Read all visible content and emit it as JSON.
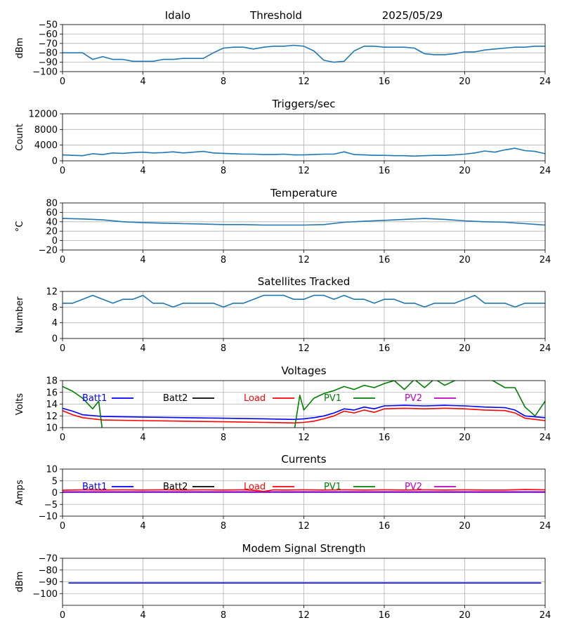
{
  "header": {
    "station": "Idalo",
    "mode": "Threshold",
    "date": "2025/05/29"
  },
  "x_axis": {
    "range": [
      0,
      24
    ],
    "ticks": [
      0,
      4,
      8,
      12,
      16,
      20,
      24
    ],
    "tick_labels": [
      "0",
      "4",
      "8",
      "12",
      "16",
      "20",
      "24"
    ]
  },
  "legend_labels": {
    "batt1": "Batt1",
    "batt2": "Batt2",
    "load": "Load",
    "pv1": "PV1",
    "pv2": "PV2"
  },
  "colors": {
    "default_series": "#1f77b4",
    "batt1": "#0000ff",
    "batt2": "#000000",
    "load": "#ff0000",
    "pv1": "#008000",
    "pv2": "#bf00bf",
    "modem": "#0000ff"
  },
  "chart_data": [
    {
      "id": "threshold",
      "type": "line",
      "title": "",
      "ylabel": "dBm",
      "ylim": [
        -100,
        -50
      ],
      "yticks": [
        -100,
        -90,
        -80,
        -70,
        -60,
        -50
      ],
      "ytick_labels": [
        "−100",
        "−90",
        "−80",
        "−70",
        "−60",
        "−50"
      ],
      "grid": true,
      "series": [
        {
          "key": "default_series",
          "x": [
            0,
            0.5,
            1,
            1.5,
            2,
            2.5,
            3,
            3.5,
            4,
            4.5,
            5,
            5.5,
            6,
            6.5,
            7,
            7.5,
            8,
            8.5,
            9,
            9.5,
            10,
            10.5,
            11,
            11.5,
            12,
            12.5,
            13,
            13.5,
            14,
            14.5,
            15,
            15.5,
            16,
            16.5,
            17,
            17.5,
            18,
            18.5,
            19,
            19.5,
            20,
            20.5,
            21,
            21.5,
            22,
            22.5,
            23,
            23.5,
            24
          ],
          "values": [
            -80,
            -80,
            -80,
            -87,
            -84,
            -87,
            -87,
            -89,
            -89,
            -89,
            -87,
            -87,
            -86,
            -86,
            -86,
            -80,
            -75,
            -74,
            -74,
            -76,
            -74,
            -73,
            -73,
            -72,
            -73,
            -78,
            -88,
            -90,
            -89,
            -78,
            -73,
            -73,
            -74,
            -74,
            -74,
            -75,
            -81,
            -82,
            -82,
            -81,
            -79,
            -79,
            -77,
            -76,
            -75,
            -74,
            -74,
            -73,
            -73
          ]
        }
      ]
    },
    {
      "id": "triggers",
      "type": "line",
      "title": "Triggers/sec",
      "ylabel": "Count",
      "ylim": [
        0,
        12000
      ],
      "yticks": [
        0,
        4000,
        8000,
        12000
      ],
      "ytick_labels": [
        "0",
        "4000",
        "8000",
        "12000"
      ],
      "grid": true,
      "series": [
        {
          "key": "default_series",
          "x": [
            0,
            0.5,
            1,
            1.5,
            2,
            2.5,
            3,
            3.5,
            4,
            4.5,
            5,
            5.5,
            6,
            6.5,
            7,
            7.5,
            8,
            8.5,
            9,
            9.5,
            10,
            10.5,
            11,
            11.5,
            12,
            12.5,
            13,
            13.5,
            14,
            14.5,
            15,
            15.5,
            16,
            16.5,
            17,
            17.5,
            18,
            18.5,
            19,
            19.5,
            20,
            20.5,
            21,
            21.5,
            22,
            22.5,
            23,
            23.5,
            24
          ],
          "values": [
            1500,
            1400,
            1300,
            1800,
            1600,
            2000,
            1900,
            2100,
            2200,
            2000,
            2100,
            2300,
            2000,
            2200,
            2400,
            2000,
            1900,
            1800,
            1700,
            1700,
            1600,
            1600,
            1700,
            1500,
            1500,
            1600,
            1700,
            1700,
            2300,
            1600,
            1500,
            1400,
            1400,
            1300,
            1300,
            1200,
            1300,
            1400,
            1400,
            1500,
            1700,
            2000,
            2500,
            2200,
            2800,
            3200,
            2600,
            2400,
            1800
          ]
        }
      ]
    },
    {
      "id": "temperature",
      "type": "line",
      "title": "Temperature",
      "ylabel": "°C",
      "ylim": [
        -20,
        80
      ],
      "yticks": [
        -20,
        0,
        20,
        40,
        60,
        80
      ],
      "ytick_labels": [
        "−20",
        "0",
        "20",
        "40",
        "60",
        "80"
      ],
      "grid": true,
      "series": [
        {
          "key": "default_series",
          "x": [
            0,
            1,
            2,
            3,
            4,
            5,
            6,
            7,
            8,
            9,
            10,
            11,
            12,
            13,
            14,
            15,
            16,
            17,
            18,
            19,
            20,
            21,
            22,
            23,
            24
          ],
          "values": [
            47,
            46,
            44,
            40,
            38,
            37,
            36,
            35,
            34,
            34,
            33,
            33,
            33,
            34,
            39,
            41,
            43,
            45,
            47,
            45,
            42,
            40,
            39,
            36,
            33
          ]
        }
      ]
    },
    {
      "id": "satellites",
      "type": "line",
      "title": "Satellites Tracked",
      "ylabel": "Number",
      "ylim": [
        0,
        12
      ],
      "yticks": [
        0,
        4,
        8,
        12
      ],
      "ytick_labels": [
        "0",
        "4",
        "8",
        "12"
      ],
      "grid": true,
      "series": [
        {
          "key": "default_series",
          "x": [
            0,
            0.5,
            1,
            1.5,
            2,
            2.5,
            3,
            3.5,
            4,
            4.5,
            5,
            5.5,
            6,
            6.5,
            7,
            7.5,
            8,
            8.5,
            9,
            9.5,
            10,
            10.5,
            11,
            11.5,
            12,
            12.5,
            13,
            13.5,
            14,
            14.5,
            15,
            15.5,
            16,
            16.5,
            17,
            17.5,
            18,
            18.5,
            19,
            19.5,
            20,
            20.5,
            21,
            21.5,
            22,
            22.5,
            23,
            23.5,
            24
          ],
          "values": [
            9,
            9,
            10,
            11,
            10,
            9,
            10,
            10,
            11,
            9,
            9,
            8,
            9,
            9,
            9,
            9,
            8,
            9,
            9,
            10,
            11,
            11,
            11,
            10,
            10,
            11,
            11,
            10,
            11,
            10,
            10,
            9,
            10,
            10,
            9,
            9,
            8,
            9,
            9,
            9,
            10,
            11,
            9,
            9,
            9,
            8,
            9,
            9,
            9
          ]
        }
      ]
    },
    {
      "id": "voltages",
      "type": "line",
      "title": "Voltages",
      "ylabel": "Volts",
      "ylim": [
        10,
        18
      ],
      "yticks": [
        10,
        12,
        14,
        16,
        18
      ],
      "ytick_labels": [
        "10",
        "12",
        "14",
        "16",
        "18"
      ],
      "grid": true,
      "legend": true,
      "series": [
        {
          "key": "batt1",
          "x": [
            0,
            0.5,
            1,
            2,
            4,
            6,
            8,
            10,
            11.5,
            12,
            12.5,
            13,
            13.5,
            14,
            14.5,
            15,
            15.5,
            16,
            17,
            18,
            19,
            20,
            21,
            22,
            22.5,
            23,
            24
          ],
          "values": [
            13.3,
            12.8,
            12.2,
            11.9,
            11.8,
            11.7,
            11.6,
            11.5,
            11.4,
            11.5,
            11.7,
            12.0,
            12.5,
            13.2,
            13.0,
            13.5,
            13.2,
            13.7,
            13.8,
            13.7,
            13.8,
            13.7,
            13.5,
            13.4,
            13.0,
            12.0,
            11.7
          ]
        },
        {
          "key": "load",
          "x": [
            0,
            0.5,
            1,
            2,
            4,
            6,
            8,
            10,
            11.5,
            12,
            12.5,
            13,
            13.5,
            14,
            14.5,
            15,
            15.5,
            16,
            17,
            18,
            19,
            20,
            21,
            22,
            22.5,
            23,
            24
          ],
          "values": [
            12.9,
            12.2,
            11.7,
            11.3,
            11.2,
            11.1,
            11.0,
            10.9,
            10.8,
            10.9,
            11.1,
            11.5,
            12.0,
            12.8,
            12.5,
            13.0,
            12.6,
            13.2,
            13.3,
            13.2,
            13.3,
            13.2,
            13.0,
            12.9,
            12.5,
            11.6,
            11.2
          ]
        },
        {
          "key": "pv1",
          "x": [
            0,
            0.5,
            1,
            1.5,
            1.8,
            2,
            2.3,
            11.5,
            11.8,
            12,
            12.5,
            13,
            13.5,
            14,
            14.5,
            15,
            15.5,
            16,
            16.5,
            17,
            17.5,
            18,
            18.5,
            19,
            19.5,
            20,
            21,
            21.5,
            22,
            22.5,
            23,
            23.5,
            24
          ],
          "values": [
            17.0,
            16.2,
            15.0,
            13.2,
            14.5,
            9.0,
            7.0,
            9.0,
            15.5,
            13.0,
            15.0,
            15.8,
            16.3,
            17.0,
            16.5,
            17.2,
            16.8,
            17.5,
            18.0,
            16.5,
            18.2,
            16.8,
            18.3,
            17.2,
            18.0,
            18.5,
            18.8,
            17.8,
            16.8,
            16.8,
            13.5,
            12.0,
            14.5
          ]
        }
      ]
    },
    {
      "id": "currents",
      "type": "line",
      "title": "Currents",
      "ylabel": "Amps",
      "ylim": [
        -10,
        10
      ],
      "yticks": [
        -10,
        -5,
        0,
        5,
        10
      ],
      "ytick_labels": [
        "−10",
        "−5",
        "0",
        "5",
        "10"
      ],
      "grid": true,
      "legend": true,
      "series": [
        {
          "key": "batt1",
          "x": [
            0,
            4,
            8,
            12,
            16,
            20,
            24
          ],
          "values": [
            0.2,
            0.2,
            0.2,
            0.2,
            0.2,
            0.2,
            0.2
          ]
        },
        {
          "key": "pv2",
          "x": [
            0,
            4,
            8,
            12,
            16,
            20,
            24
          ],
          "values": [
            0.4,
            0.4,
            0.4,
            0.4,
            0.4,
            0.4,
            0.4
          ]
        },
        {
          "key": "load",
          "x": [
            0,
            1,
            2,
            3,
            4,
            5,
            6,
            7,
            8,
            9,
            9.5,
            10,
            10.5,
            11,
            12,
            13,
            14,
            15,
            16,
            17,
            18,
            19,
            20,
            21,
            22,
            23,
            24
          ],
          "values": [
            1.0,
            1.2,
            1.1,
            1.2,
            1.1,
            1.2,
            1.1,
            1.2,
            1.1,
            1.2,
            1.0,
            0.5,
            1.2,
            1.1,
            1.2,
            1.1,
            1.2,
            1.1,
            1.2,
            1.1,
            1.2,
            1.1,
            1.2,
            1.1,
            1.1,
            1.3,
            1.2
          ]
        }
      ]
    },
    {
      "id": "modem",
      "type": "line",
      "title": "Modem Signal Strength",
      "ylabel": "dBm",
      "ylim": [
        -110,
        -70
      ],
      "yticks": [
        -100,
        -90,
        -80,
        -70
      ],
      "ytick_labels": [
        "−100",
        "−90",
        "−80",
        "−70"
      ],
      "grid": true,
      "series": [
        {
          "key": "modem",
          "x": [
            0.3,
            23.8
          ],
          "values": [
            -91,
            -91
          ]
        }
      ]
    }
  ]
}
